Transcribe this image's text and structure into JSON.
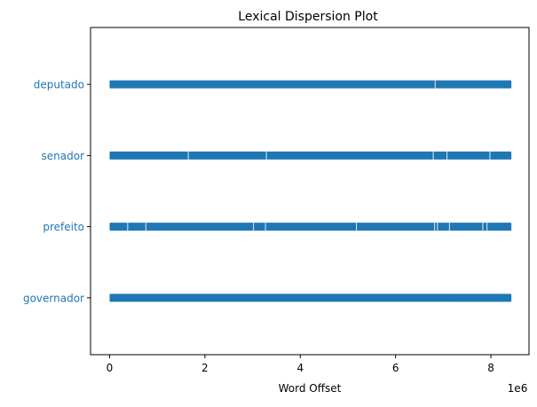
{
  "chart_data": {
    "type": "scatter",
    "title": "Lexical Dispersion Plot",
    "xlabel": "Word Offset",
    "ylabel": "",
    "x_offset_label": "1e6",
    "xlim": [
      -400000,
      8800000
    ],
    "ylim": [
      -0.8,
      3.8
    ],
    "x_ticks": [
      0,
      2000000,
      4000000,
      6000000,
      8000000
    ],
    "x_tick_labels": [
      "0",
      "2",
      "4",
      "6",
      "8"
    ],
    "categories": [
      "governador",
      "prefeito",
      "senador",
      "deputado"
    ],
    "marker_color": "#1f77b4",
    "label_color": "#1f77b4",
    "series": [
      {
        "name": "governador",
        "y": 0,
        "ranges": [
          [
            0,
            8430000
          ]
        ],
        "gaps": []
      },
      {
        "name": "prefeito",
        "y": 1,
        "ranges": [
          [
            0,
            8430000
          ]
        ],
        "gaps": [
          380000,
          760000,
          3020000,
          3270000,
          5180000,
          6820000,
          6880000,
          7130000,
          7830000,
          7920000
        ]
      },
      {
        "name": "senador",
        "y": 2,
        "ranges": [
          [
            0,
            8430000
          ]
        ],
        "gaps": [
          1650000,
          3290000,
          6790000,
          7080000,
          7980000
        ]
      },
      {
        "name": "deputado",
        "y": 3,
        "ranges": [
          [
            0,
            8430000
          ]
        ],
        "gaps": [
          6830000
        ]
      }
    ]
  }
}
